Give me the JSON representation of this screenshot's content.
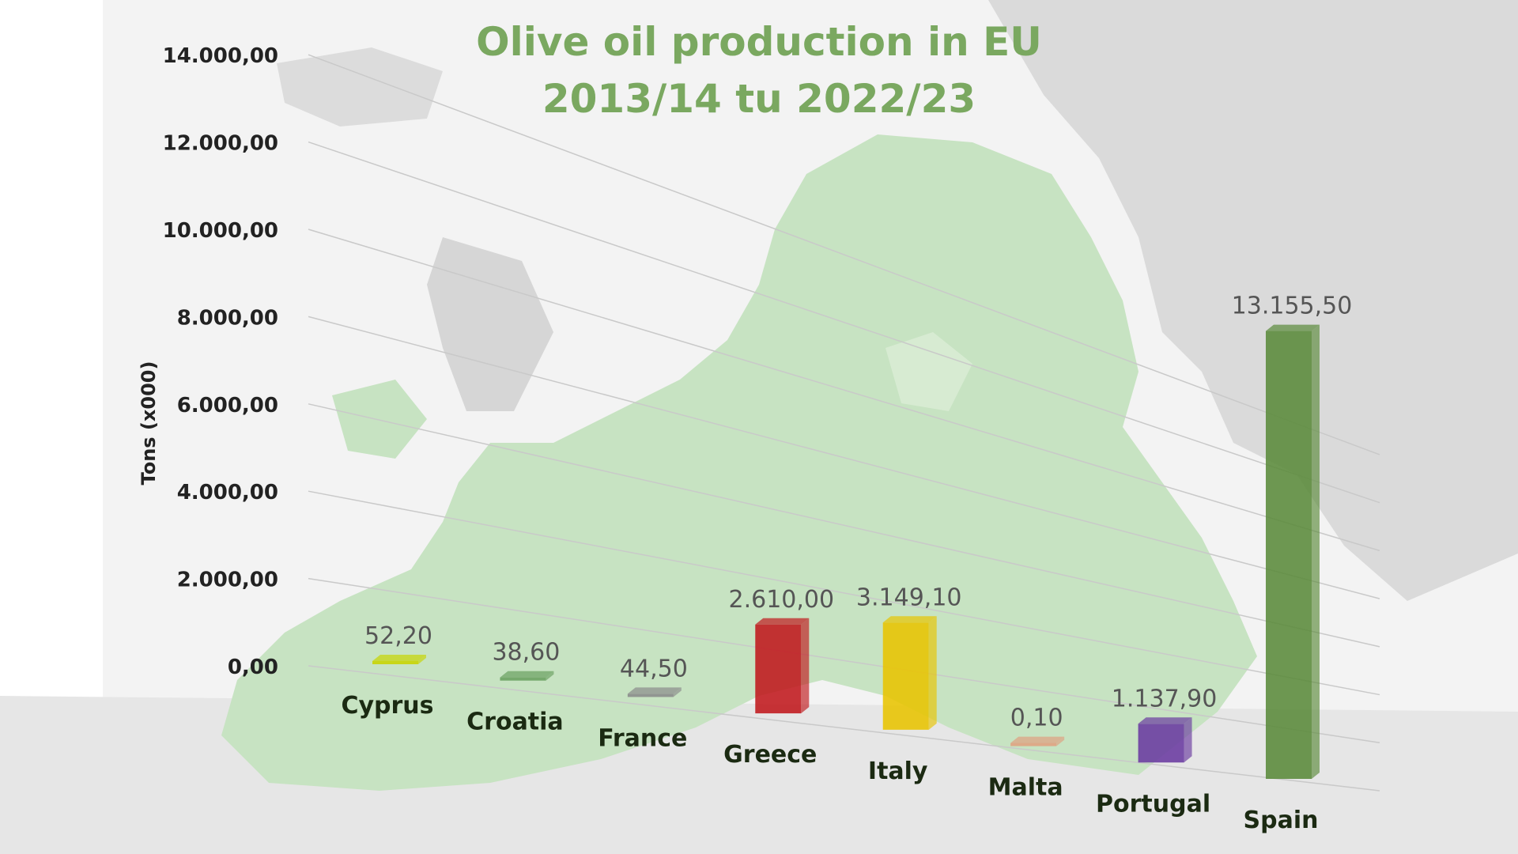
{
  "chart_data": {
    "type": "bar",
    "title": [
      "Olive oil production in EU",
      "2013/14 tu 2022/23"
    ],
    "ylabel": "Tons (x000)",
    "ylim": [
      0,
      14000
    ],
    "yticks": [
      "0,00",
      "2.000,00",
      "4.000,00",
      "6.000,00",
      "8.000,00",
      "10.000,00",
      "12.000,00",
      "14.000,00"
    ],
    "categories": [
      "Cyprus",
      "Croatia",
      "France",
      "Greece",
      "Italy",
      "Malta",
      "Portugal",
      "Spain"
    ],
    "values": [
      52.2,
      38.6,
      44.5,
      2610.0,
      3149.1,
      0.1,
      1137.9,
      13155.5
    ],
    "value_labels": [
      "52,20",
      "38,60",
      "44,50",
      "2.610,00",
      "3.149,10",
      "0,10",
      "1.137,90",
      "13.155,50"
    ],
    "colors": [
      "#c8d400",
      "#6aa060",
      "#8a8a8a",
      "#c0181c",
      "#e8c400",
      "#e0a080",
      "#6a3aa0",
      "#5a8a3a"
    ],
    "grid": true,
    "legend": "none",
    "background": "EU map"
  }
}
